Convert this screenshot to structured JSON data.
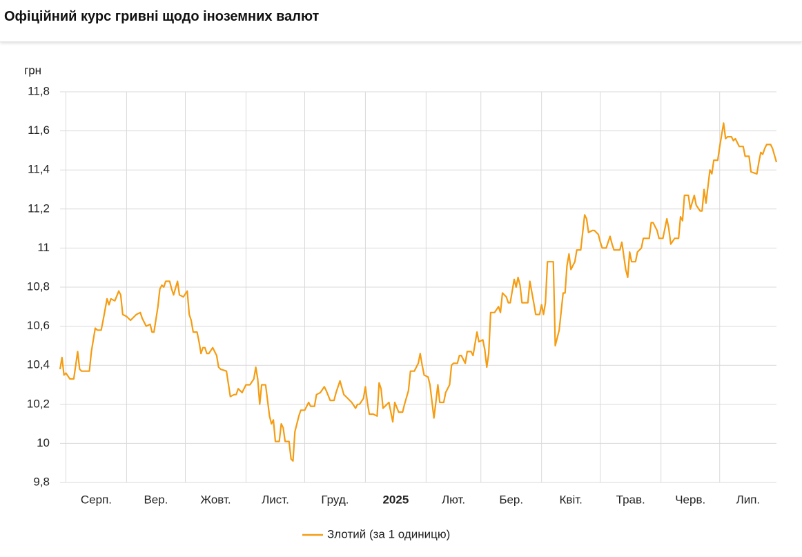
{
  "chart_data": {
    "type": "line",
    "title": "Офіційний курс гривні щодо іноземних валют",
    "y_label": "грн",
    "xlim": [
      -3,
      363
    ],
    "xticks": [
      {
        "value": 0,
        "label": "Серп."
      },
      {
        "value": 31,
        "label": "Вер."
      },
      {
        "value": 61,
        "label": "Жовт."
      },
      {
        "value": 92,
        "label": "Лист."
      },
      {
        "value": 122,
        "label": "Груд."
      },
      {
        "value": 153,
        "label": "2025"
      },
      {
        "value": 184,
        "label": "Лют."
      },
      {
        "value": 212,
        "label": "Бер."
      },
      {
        "value": 243,
        "label": "Квіт."
      },
      {
        "value": 273,
        "label": "Трав."
      },
      {
        "value": 304,
        "label": "Черв."
      },
      {
        "value": 334,
        "label": "Лип."
      }
    ],
    "ylim": [
      9.8,
      11.8
    ],
    "yticks": [
      {
        "value": 9.8,
        "label": "9,8"
      },
      10,
      {
        "value": 10.2,
        "label": "10,2"
      },
      {
        "value": 10.4,
        "label": "10,4"
      },
      {
        "value": 10.6,
        "label": "10,6"
      },
      {
        "value": 10.8,
        "label": "10,8"
      },
      11,
      {
        "value": 11.2,
        "label": "11,2"
      },
      {
        "value": 11.4,
        "label": "11,4"
      },
      {
        "value": 11.6,
        "label": "11,6"
      },
      {
        "value": 11.8,
        "label": "11,8"
      }
    ],
    "grid": true,
    "legend": "bottom",
    "x": [
      -3,
      -2,
      -1,
      0,
      2,
      4,
      6,
      7,
      8,
      12,
      13,
      15,
      16,
      18,
      19,
      21,
      22,
      23,
      25,
      27,
      28,
      29,
      31,
      33,
      36,
      38,
      39,
      41,
      43,
      44,
      45,
      47,
      48,
      49,
      50,
      51,
      53,
      54,
      55,
      57,
      58,
      60,
      62,
      63,
      64,
      65,
      67,
      68,
      69,
      70,
      71,
      72,
      73,
      75,
      77,
      78,
      79,
      82,
      84,
      86,
      87,
      88,
      90,
      92,
      94,
      96,
      97,
      98,
      99,
      100,
      102,
      104,
      105,
      106,
      107,
      109,
      110,
      111,
      112,
      114,
      115,
      116,
      117,
      119,
      120,
      122,
      124,
      125,
      127,
      128,
      130,
      132,
      133,
      135,
      137,
      138,
      140,
      142,
      143,
      146,
      148,
      149,
      150,
      152,
      153,
      154,
      155,
      157,
      159,
      160,
      161,
      162,
      164,
      165,
      167,
      168,
      170,
      172,
      173,
      175,
      176,
      178,
      180,
      181,
      182,
      183,
      185,
      186,
      188,
      189,
      190,
      191,
      193,
      194,
      196,
      197,
      198,
      200,
      201,
      202,
      204,
      205,
      207,
      208,
      210,
      211,
      213,
      214,
      215,
      216,
      217,
      219,
      221,
      222,
      223,
      225,
      226,
      227,
      229,
      230,
      231,
      232,
      233,
      236,
      237,
      239,
      240,
      242,
      243,
      244,
      245,
      246,
      249,
      250,
      252,
      254,
      255,
      256,
      257,
      258,
      260,
      261,
      263,
      265,
      266,
      267,
      269,
      270,
      272,
      273,
      274,
      276,
      278,
      279,
      280,
      283,
      284,
      286,
      287,
      288,
      289,
      291,
      292,
      294,
      295,
      298,
      299,
      300,
      302,
      303,
      305,
      307,
      308,
      309,
      311,
      313,
      314,
      315,
      316,
      318,
      319,
      321,
      322,
      324,
      325,
      326,
      327,
      329,
      330,
      331,
      333,
      334,
      335,
      336,
      337,
      338,
      340,
      341,
      342,
      344,
      346,
      347,
      349,
      350,
      353,
      354,
      355,
      356,
      357,
      358,
      360,
      361,
      363
    ],
    "series": [
      {
        "name": "Злотий (за 1 одиницю)",
        "color": "#f59c11",
        "values": [
          10.38,
          10.44,
          10.35,
          10.36,
          10.33,
          10.33,
          10.47,
          10.38,
          10.37,
          10.37,
          10.47,
          10.59,
          10.58,
          10.58,
          10.63,
          10.74,
          10.71,
          10.74,
          10.73,
          10.78,
          10.76,
          10.66,
          10.65,
          10.63,
          10.66,
          10.67,
          10.64,
          10.6,
          10.61,
          10.57,
          10.57,
          10.7,
          10.79,
          10.81,
          10.8,
          10.83,
          10.83,
          10.79,
          10.76,
          10.83,
          10.76,
          10.75,
          10.78,
          10.66,
          10.63,
          10.57,
          10.57,
          10.52,
          10.46,
          10.49,
          10.49,
          10.46,
          10.46,
          10.49,
          10.45,
          10.39,
          10.38,
          10.37,
          10.24,
          10.25,
          10.25,
          10.28,
          10.26,
          10.3,
          10.3,
          10.33,
          10.39,
          10.33,
          10.2,
          10.3,
          10.3,
          10.14,
          10.1,
          10.12,
          10.01,
          10.01,
          10.1,
          10.08,
          10.01,
          10.01,
          9.92,
          9.91,
          10.06,
          10.14,
          10.17,
          10.17,
          10.21,
          10.19,
          10.19,
          10.25,
          10.26,
          10.29,
          10.27,
          10.22,
          10.22,
          10.26,
          10.32,
          10.25,
          10.24,
          10.21,
          10.18,
          10.2,
          10.2,
          10.23,
          10.29,
          10.21,
          10.15,
          10.15,
          10.14,
          10.31,
          10.28,
          10.18,
          10.2,
          10.21,
          10.11,
          10.21,
          10.16,
          10.16,
          10.2,
          10.27,
          10.37,
          10.37,
          10.41,
          10.46,
          10.4,
          10.35,
          10.34,
          10.3,
          10.13,
          10.21,
          10.3,
          10.21,
          10.21,
          10.26,
          10.3,
          10.4,
          10.41,
          10.41,
          10.45,
          10.45,
          10.41,
          10.47,
          10.47,
          10.45,
          10.57,
          10.52,
          10.53,
          10.48,
          10.39,
          10.46,
          10.67,
          10.67,
          10.7,
          10.67,
          10.77,
          10.75,
          10.72,
          10.72,
          10.84,
          10.8,
          10.85,
          10.81,
          10.72,
          10.72,
          10.83,
          10.72,
          10.66,
          10.66,
          10.71,
          10.66,
          10.72,
          10.93,
          10.93,
          10.5,
          10.58,
          10.77,
          10.77,
          10.91,
          10.97,
          10.89,
          10.93,
          10.99,
          10.99,
          11.17,
          11.15,
          11.08,
          11.09,
          11.09,
          11.07,
          11.03,
          11.0,
          11.0,
          11.06,
          11.02,
          10.99,
          10.99,
          11.03,
          10.89,
          10.85,
          10.98,
          10.93,
          10.93,
          10.98,
          11.0,
          11.05,
          11.05,
          11.13,
          11.13,
          11.09,
          11.05,
          11.05,
          11.15,
          11.1,
          11.02,
          11.05,
          11.05,
          11.16,
          11.14,
          11.27,
          11.27,
          11.2,
          11.27,
          11.22,
          11.19,
          11.19,
          11.3,
          11.23,
          11.4,
          11.38,
          11.45,
          11.45,
          11.52,
          11.58,
          11.64,
          11.56,
          11.57,
          11.57,
          11.55,
          11.56,
          11.52,
          11.52,
          11.47,
          11.47,
          11.39,
          11.38,
          11.44,
          11.49,
          11.48,
          11.51,
          11.53,
          11.53,
          11.51,
          11.44
        ]
      }
    ]
  }
}
